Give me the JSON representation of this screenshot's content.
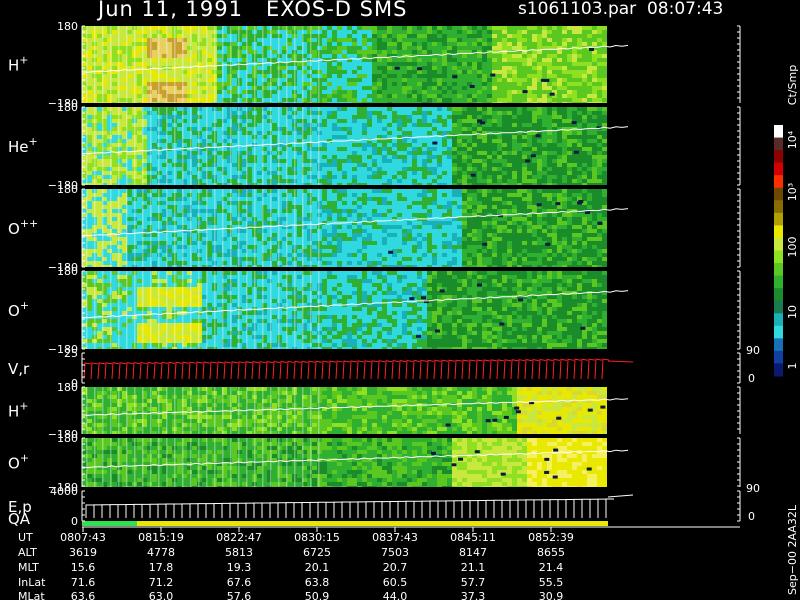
{
  "header": {
    "title": "Jun 11, 1991   EXOS-D SMS",
    "data_file": "s1061103.par  08:07:43"
  },
  "colorbar": {
    "unit": "Ct/Smp",
    "labels": [
      "10⁴",
      "10³",
      "100",
      "10",
      "1"
    ],
    "colors": [
      "#ffffff",
      "#5a2a2a",
      "#8b0000",
      "#d40000",
      "#ff2d00",
      "#6b4a00",
      "#8a6d00",
      "#b0a000",
      "#e8e800",
      "#c8e840",
      "#8fe020",
      "#5ac820",
      "#2fb030",
      "#1a8c2a",
      "#1a7a50",
      "#1ab0b8",
      "#30d8e0",
      "#1870b8",
      "#1040a0",
      "#0a1a70"
    ]
  },
  "panels": [
    {
      "label": "H",
      "sup": "+",
      "top": "180",
      "bottom": "−180"
    },
    {
      "label": "He",
      "sup": "+",
      "top": "180",
      "bottom": "−180"
    },
    {
      "label": "O",
      "sup": "++",
      "top": "180",
      "bottom": "−180"
    },
    {
      "label": "O",
      "sup": "+",
      "top": "180",
      "bottom": "−180"
    },
    {
      "label": "V,r",
      "sup": "",
      "top": "25",
      "bottom": "0",
      "rtop": "90",
      "rbottom": "0"
    },
    {
      "label": "H",
      "sup": "+",
      "top": "180",
      "bottom": "−180"
    },
    {
      "label": "O",
      "sup": "+",
      "top": "180",
      "bottom": "−180"
    },
    {
      "label": "E,p",
      "sup": "",
      "top": "4000",
      "bottom": "0",
      "rtop": "90",
      "rbottom": "0",
      "label2": "QA"
    }
  ],
  "footer_label": "Sep−00 2AA32L",
  "ephemeris": {
    "row_labels": [
      "UT",
      "ALT",
      "MLT",
      "InLat",
      "MLat"
    ],
    "columns": [
      {
        "UT": "0807:43",
        "ALT": "3619",
        "MLT": "15.6",
        "InLat": "71.6",
        "MLat": "63.6"
      },
      {
        "UT": "0815:19",
        "ALT": "4778",
        "MLT": "17.8",
        "InLat": "71.2",
        "MLat": "63.0"
      },
      {
        "UT": "0822:47",
        "ALT": "5813",
        "MLT": "19.3",
        "InLat": "67.6",
        "MLat": "57.6"
      },
      {
        "UT": "0830:15",
        "ALT": "6725",
        "MLT": "20.1",
        "InLat": "63.8",
        "MLat": "50.9"
      },
      {
        "UT": "0837:43",
        "ALT": "7503",
        "MLT": "20.7",
        "InLat": "60.5",
        "MLat": "44.0"
      },
      {
        "UT": "0845:11",
        "ALT": "8147",
        "MLT": "21.1",
        "InLat": "57.7",
        "MLat": "37.3"
      },
      {
        "UT": "0852:39",
        "ALT": "8655",
        "MLT": "21.4",
        "InLat": "55.5",
        "MLat": "30.9"
      }
    ]
  },
  "chart_data": {
    "type": "heatmap",
    "title": "Jun 11, 1991   EXOS-D SMS",
    "x_ticks": [
      "0807:43",
      "0815:19",
      "0822:47",
      "0830:15",
      "0837:43",
      "0845:11",
      "0852:39"
    ],
    "series": [
      {
        "name": "H+",
        "ylim": [
          -180,
          180
        ]
      },
      {
        "name": "He+",
        "ylim": [
          -180,
          180
        ]
      },
      {
        "name": "O++",
        "ylim": [
          -180,
          180
        ]
      },
      {
        "name": "O+",
        "ylim": [
          -180,
          180
        ]
      },
      {
        "name": "V,r",
        "ylim": [
          0,
          25
        ]
      },
      {
        "name": "H+",
        "ylim": [
          -180,
          180
        ]
      },
      {
        "name": "O+",
        "ylim": [
          -180,
          180
        ]
      },
      {
        "name": "E,p",
        "ylim": [
          0,
          4000
        ]
      }
    ],
    "colorbar_unit": "Ct/Smp",
    "colorbar_ticks": [
      "1",
      "10",
      "100",
      "10³",
      "10⁴"
    ]
  }
}
